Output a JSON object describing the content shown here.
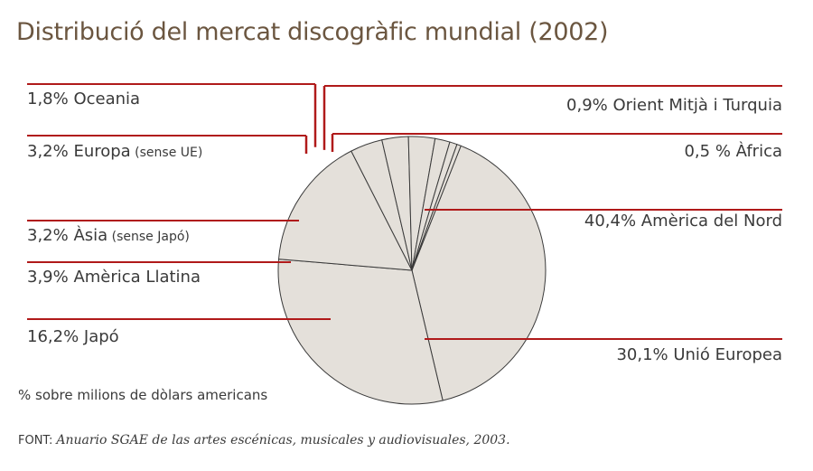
{
  "chart_data": {
    "type": "pie",
    "title": "Distribució del mercat discogràfic mundial (2002)",
    "unit_note": "% sobre milions de dòlars americans",
    "source_label": "FONT:",
    "source_text": "Anuario SGAE de las artes escénicas, musicales y audiovisuales, 2003.",
    "colors": {
      "slice_fill": "#e4e0da",
      "slice_stroke": "#3a3a3a",
      "leader": "#b01a1a",
      "text": "#3a3a3a",
      "title": "#6b5640"
    },
    "slices": [
      {
        "label": "América del Nord",
        "display": "40,4% Amèrica del Nord",
        "value": 40.4,
        "side": "right"
      },
      {
        "label": "Unió Europea",
        "display": "30,1% Unió Europea",
        "value": 30.1,
        "side": "right"
      },
      {
        "label": "Japó",
        "display": "16,2% Japó",
        "value": 16.2,
        "side": "left"
      },
      {
        "label": "Amèrica Llatina",
        "display": "3,9% Amèrica Llatina",
        "value": 3.9,
        "side": "left"
      },
      {
        "label": "Àsia",
        "display": "3,2% Àsia",
        "qualifier": "(sense Japó)",
        "value": 3.2,
        "side": "left"
      },
      {
        "label": "Europa",
        "display": "3,2% Europa",
        "qualifier": "(sense UE)",
        "value": 3.2,
        "side": "left"
      },
      {
        "label": "Oceania",
        "display": "1,8% Oceania",
        "value": 1.8,
        "side": "left"
      },
      {
        "label": "Orient Mitjà i Turquia",
        "display": "0,9% Orient Mitjà i Turquia",
        "value": 0.9,
        "side": "right"
      },
      {
        "label": "Àfrica",
        "display": "0,5 % Àfrica",
        "value": 0.5,
        "side": "right"
      }
    ]
  }
}
